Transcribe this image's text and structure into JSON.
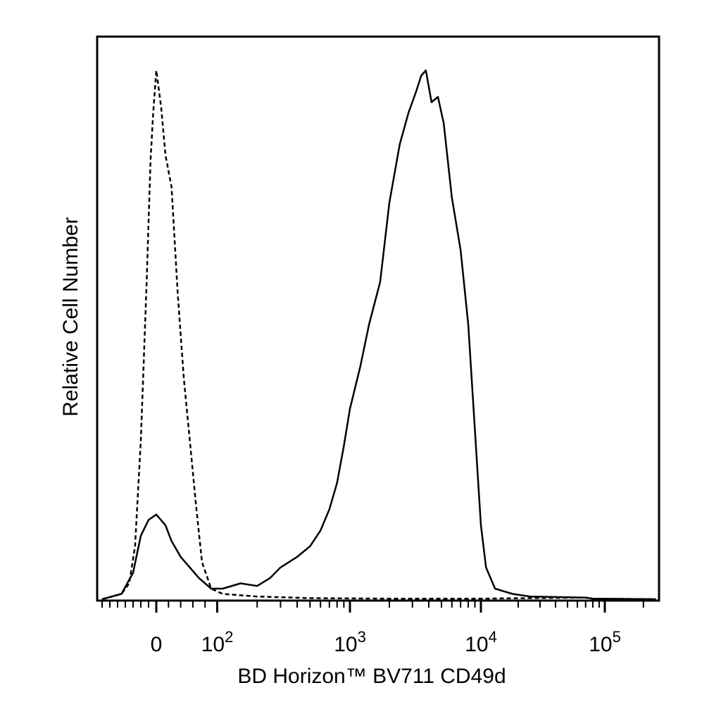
{
  "chart_data": {
    "type": "area",
    "title": "",
    "xlabel": "BD Horizon™ BV711 CD49d",
    "ylabel": "Relative Cell Number",
    "x_scale": "biexponential",
    "grid": false,
    "legend": "none",
    "xticks": [
      {
        "value": 0,
        "base": "0",
        "exp": ""
      },
      {
        "value": 100,
        "base": "10",
        "exp": "2"
      },
      {
        "value": 1000,
        "base": "10",
        "exp": "3"
      },
      {
        "value": 10000,
        "base": "10",
        "exp": "4"
      },
      {
        "value": 100000,
        "base": "10",
        "exp": "5"
      }
    ],
    "ylim": [
      0,
      100
    ],
    "series": [
      {
        "style": "dashed",
        "color": "#000000",
        "points": [
          [
            -140,
            0
          ],
          [
            -90,
            1
          ],
          [
            -70,
            3
          ],
          [
            -55,
            10
          ],
          [
            -40,
            30
          ],
          [
            -25,
            60
          ],
          [
            -15,
            83
          ],
          [
            -8,
            92
          ],
          [
            0,
            100
          ],
          [
            8,
            93
          ],
          [
            15,
            84
          ],
          [
            25,
            78
          ],
          [
            35,
            58
          ],
          [
            45,
            42
          ],
          [
            55,
            30
          ],
          [
            65,
            18
          ],
          [
            75,
            7
          ],
          [
            90,
            2
          ],
          [
            110,
            1
          ],
          [
            200,
            0.5
          ],
          [
            500,
            0.2
          ],
          [
            2000,
            0.1
          ],
          [
            10000,
            0.1
          ],
          [
            70000,
            0.3
          ],
          [
            80000,
            0.1
          ],
          [
            250000,
            0
          ]
        ]
      },
      {
        "style": "solid",
        "color": "#000000",
        "points": [
          [
            -140,
            0
          ],
          [
            -90,
            1
          ],
          [
            -60,
            5
          ],
          [
            -40,
            12
          ],
          [
            -20,
            15
          ],
          [
            0,
            16
          ],
          [
            15,
            14
          ],
          [
            25,
            11
          ],
          [
            40,
            8
          ],
          [
            55,
            6
          ],
          [
            70,
            4
          ],
          [
            90,
            2
          ],
          [
            110,
            2
          ],
          [
            150,
            3
          ],
          [
            200,
            2.5
          ],
          [
            250,
            4
          ],
          [
            300,
            6
          ],
          [
            400,
            8
          ],
          [
            500,
            10
          ],
          [
            600,
            13
          ],
          [
            700,
            17
          ],
          [
            800,
            22
          ],
          [
            900,
            29
          ],
          [
            1000,
            36
          ],
          [
            1200,
            44
          ],
          [
            1400,
            52
          ],
          [
            1700,
            60
          ],
          [
            2000,
            75
          ],
          [
            2400,
            86
          ],
          [
            2800,
            92
          ],
          [
            3200,
            96
          ],
          [
            3500,
            99
          ],
          [
            3800,
            100
          ],
          [
            4200,
            94
          ],
          [
            4700,
            95
          ],
          [
            5200,
            90
          ],
          [
            6000,
            76
          ],
          [
            7000,
            66
          ],
          [
            8000,
            52
          ],
          [
            9000,
            32
          ],
          [
            10000,
            14
          ],
          [
            11000,
            6
          ],
          [
            13000,
            2
          ],
          [
            18000,
            1
          ],
          [
            25000,
            0.5
          ],
          [
            70000,
            0.3
          ],
          [
            80000,
            0.1
          ],
          [
            250000,
            0
          ]
        ]
      }
    ]
  }
}
